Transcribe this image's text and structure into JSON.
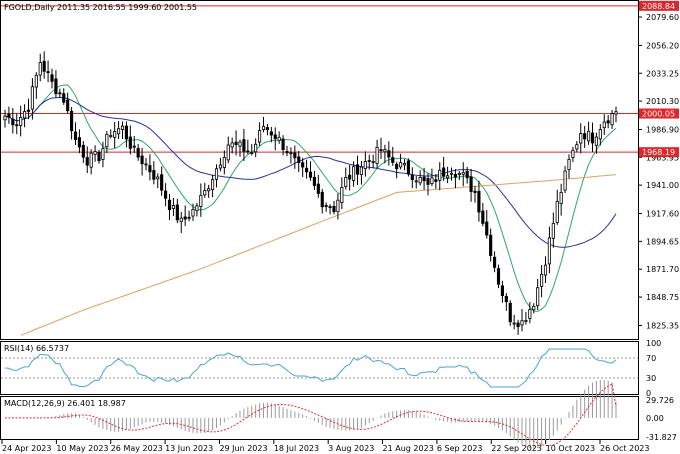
{
  "header": {
    "symbol_line": "FGOLD,Daily  2011.35 2016.55 1999.60 2001.55",
    "rsi_label": "RSI(14) 66.5737",
    "macd_label": "MACD(12,26,9) 26.401 18.987"
  },
  "colors": {
    "bull_candle": "#ffffff",
    "bear_candle": "#000000",
    "level_line": "#e0262b",
    "level_tag": "#e0262b",
    "current_price_tag": "#e0262b",
    "ma_fast": "#2ea86b",
    "ma_mid": "#2b2fa0",
    "ma_slow": "#e0a060",
    "rsi_line": "#4aa3e0",
    "macd_signal": "#e03030",
    "macd_hist": "#9a9a9a"
  },
  "chart_data": {
    "type": "candlestick",
    "title": "FGOLD,Daily",
    "ohlc_header": {
      "open": 2011.35,
      "high": 2016.55,
      "low": 1999.6,
      "close": 2001.55
    },
    "price_axis_ticks": [
      "2079.60",
      "2056.20",
      "2033.25",
      "2010.30",
      "1986.90",
      "1963.95",
      "1941.00",
      "1917.60",
      "1894.65",
      "1871.70",
      "1848.75",
      "1825.35"
    ],
    "ylim": [
      1815,
      2092
    ],
    "levels": [
      {
        "price": 2088.84,
        "label": "2088.84"
      },
      {
        "price": 2000.05,
        "label": "2000.05"
      },
      {
        "price": 1968.19,
        "label": "1968.19"
      }
    ],
    "x_ticks": [
      "24 Apr 2023",
      "10 May 2023",
      "26 May 2023",
      "13 Jun 2023",
      "29 Jun 2023",
      "18 Jul 2023",
      "3 Aug 2023",
      "21 Aug 2023",
      "6 Sep 2023",
      "22 Sep 2023",
      "10 Oct 2023",
      "26 Oct 2023"
    ],
    "anchors": [
      [
        0,
        1998
      ],
      [
        3,
        1993
      ],
      [
        6,
        2006
      ],
      [
        9,
        2043
      ],
      [
        12,
        2025
      ],
      [
        15,
        2012
      ],
      [
        18,
        1978
      ],
      [
        21,
        1962
      ],
      [
        24,
        1965
      ],
      [
        27,
        1985
      ],
      [
        30,
        1988
      ],
      [
        33,
        1968
      ],
      [
        36,
        1958
      ],
      [
        39,
        1945
      ],
      [
        42,
        1925
      ],
      [
        45,
        1910
      ],
      [
        48,
        1920
      ],
      [
        51,
        1935
      ],
      [
        54,
        1955
      ],
      [
        57,
        1975
      ],
      [
        60,
        1972
      ],
      [
        63,
        1968
      ],
      [
        66,
        1990
      ],
      [
        69,
        1982
      ],
      [
        72,
        1970
      ],
      [
        75,
        1955
      ],
      [
        78,
        1945
      ],
      [
        81,
        1928
      ],
      [
        84,
        1922
      ],
      [
        87,
        1945
      ],
      [
        90,
        1955
      ],
      [
        93,
        1962
      ],
      [
        96,
        1970
      ],
      [
        99,
        1960
      ],
      [
        102,
        1955
      ],
      [
        105,
        1948
      ],
      [
        108,
        1940
      ],
      [
        111,
        1950
      ],
      [
        114,
        1955
      ],
      [
        117,
        1948
      ],
      [
        120,
        1935
      ],
      [
        123,
        1900
      ],
      [
        126,
        1862
      ],
      [
        129,
        1832
      ],
      [
        132,
        1828
      ],
      [
        135,
        1845
      ],
      [
        138,
        1880
      ],
      [
        141,
        1925
      ],
      [
        144,
        1960
      ],
      [
        147,
        1985
      ],
      [
        150,
        1980
      ],
      [
        153,
        1995
      ],
      [
        156,
        2001
      ]
    ],
    "ma_slow_anchors": [
      [
        0,
        1812
      ],
      [
        20,
        1838
      ],
      [
        50,
        1872
      ],
      [
        80,
        1910
      ],
      [
        100,
        1935
      ],
      [
        120,
        1940
      ],
      [
        140,
        1945
      ],
      [
        157,
        1950
      ]
    ],
    "rsi": {
      "value": 66.5737,
      "levels": [
        "70",
        "30"
      ],
      "ylim": [
        0,
        100
      ],
      "axis_ticks": [
        "100",
        "70",
        "30",
        "0"
      ]
    },
    "macd": {
      "main": 26.401,
      "signal": 18.987,
      "axis_ticks": [
        "29.726",
        "0.00",
        "-31.827"
      ],
      "ylim": [
        -35,
        33
      ]
    }
  }
}
